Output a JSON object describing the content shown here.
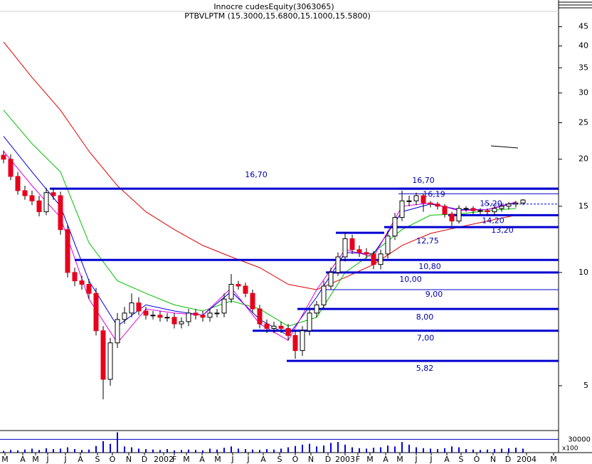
{
  "chart_data": {
    "type": "candlestick",
    "title": "Innocre cudesEquity(3063065)",
    "subtitle": "PTBVLPTM (15.3000,15.6800,15.1000,15.5800)",
    "log_scale": true,
    "up_color": "#ffffff",
    "down_color": "#e8001c",
    "ylim": [
      3.8,
      53
    ],
    "yticks": [
      5,
      10,
      15,
      20,
      25,
      30,
      35,
      40,
      45
    ],
    "xlim": [
      -0.5,
      78
    ],
    "xticks": [
      {
        "value": 0.2,
        "label": "M"
      },
      {
        "value": 2.7,
        "label": "A"
      },
      {
        "value": 4.5,
        "label": "M"
      },
      {
        "value": 6.2,
        "label": "J"
      },
      {
        "value": 8.7,
        "label": "J"
      },
      {
        "value": 10.8,
        "label": "A"
      },
      {
        "value": 13.2,
        "label": "S"
      },
      {
        "value": 15.3,
        "label": "O"
      },
      {
        "value": 17.6,
        "label": "N"
      },
      {
        "value": 19.8,
        "label": "D"
      },
      {
        "value": 22.5,
        "label": "2002"
      },
      {
        "value": 24,
        "label": "F"
      },
      {
        "value": 25.7,
        "label": "M"
      },
      {
        "value": 27.9,
        "label": "A"
      },
      {
        "value": 30.1,
        "label": "M"
      },
      {
        "value": 32.2,
        "label": "J"
      },
      {
        "value": 34.4,
        "label": "J"
      },
      {
        "value": 36.5,
        "label": "A"
      },
      {
        "value": 38.8,
        "label": "S"
      },
      {
        "value": 41,
        "label": "O"
      },
      {
        "value": 43.2,
        "label": "N"
      },
      {
        "value": 45.6,
        "label": "D"
      },
      {
        "value": 48,
        "label": "2003"
      },
      {
        "value": 49.8,
        "label": "F"
      },
      {
        "value": 51.5,
        "label": "M"
      },
      {
        "value": 53.7,
        "label": "A"
      },
      {
        "value": 55.7,
        "label": "M"
      },
      {
        "value": 58,
        "label": "J"
      },
      {
        "value": 60.1,
        "label": "J"
      },
      {
        "value": 62.3,
        "label": "A"
      },
      {
        "value": 64.3,
        "label": "S"
      },
      {
        "value": 66.5,
        "label": "O"
      },
      {
        "value": 68.8,
        "label": "N"
      },
      {
        "value": 70.9,
        "label": "D"
      },
      {
        "value": 73.5,
        "label": "2004"
      },
      {
        "value": 77.3,
        "label": "M"
      }
    ],
    "open": [
      20.5,
      20,
      18,
      16.5,
      16,
      15.5,
      14.5,
      16.3,
      16,
      13,
      10,
      9.5,
      9.3,
      8.8,
      7,
      5.2,
      6.5,
      7.5,
      7.8,
      8.3,
      7.9,
      7.7,
      7.7,
      7.6,
      7.6,
      7.3,
      7.4,
      7.8,
      7.7,
      7.6,
      7.8,
      7.8,
      8.5,
      9.3,
      9.2,
      8.8,
      8.0,
      7.3,
      7.1,
      7.2,
      7.1,
      6.8,
      6.2,
      7.0,
      7.8,
      8.2,
      9.2,
      10.0,
      11.0,
      12.3,
      11.5,
      11.3,
      11.2,
      10.5,
      11.2,
      12.5,
      14.0,
      15.5,
      15.5,
      16.0,
      15.3,
      15.2,
      15.0,
      14.3,
      13.7,
      14.8,
      14.8,
      14.6,
      14.6,
      14.5,
      14.8,
      15.0,
      15.2,
      15.3
    ],
    "high": [
      21.1,
      20.6,
      18.5,
      17,
      16.5,
      16,
      16.8,
      16.8,
      16.4,
      13.4,
      10.3,
      9.8,
      9.6,
      9.1,
      7.2,
      6.7,
      7.8,
      8.1,
      8.8,
      8.6,
      8.1,
      7.9,
      7.9,
      7.8,
      7.8,
      7.6,
      8.0,
      8.0,
      7.9,
      8.0,
      8.0,
      8.8,
      9.9,
      9.5,
      9.4,
      9.0,
      8.2,
      7.5,
      7.4,
      7.4,
      7.3,
      7.0,
      7.2,
      8.0,
      8.4,
      9.5,
      10.3,
      11.3,
      12.8,
      12.6,
      11.8,
      11.6,
      11.4,
      11.5,
      12.9,
      14.4,
      16.5,
      16.0,
      16.3,
      16.2,
      15.5,
      15.4,
      15.2,
      14.5,
      15.1,
      15.0,
      15.0,
      14.8,
      14.8,
      15.0,
      15.2,
      15.4,
      15.5,
      15.68
    ],
    "low": [
      19.5,
      17.6,
      16.1,
      15.6,
      15.1,
      14.1,
      14.2,
      15.6,
      12.6,
      9.7,
      9.2,
      9.0,
      8.5,
      6.8,
      4.6,
      5.0,
      6.3,
      7.3,
      7.6,
      7.7,
      7.5,
      7.5,
      7.4,
      7.4,
      7.1,
      7.1,
      7.2,
      7.5,
      7.4,
      7.4,
      7.6,
      7.6,
      8.3,
      9.0,
      8.6,
      7.8,
      7.1,
      6.9,
      6.9,
      6.9,
      6.6,
      5.9,
      6.0,
      6.8,
      7.6,
      8.0,
      9.0,
      9.8,
      10.7,
      11.2,
      11.0,
      10.9,
      10.2,
      10.2,
      10.9,
      12.2,
      13.7,
      15.0,
      15.1,
      14.5,
      14.9,
      14.7,
      14.0,
      13.3,
      13.5,
      14.5,
      14.3,
      14.3,
      14.2,
      14.2,
      14.5,
      14.7,
      14.9,
      15.1
    ],
    "close": [
      20,
      18,
      16.5,
      16,
      15.5,
      14.5,
      16.3,
      16,
      13,
      10,
      9.5,
      9.3,
      8.8,
      7,
      5.2,
      6.5,
      7.5,
      7.8,
      8.3,
      7.9,
      7.7,
      7.7,
      7.6,
      7.6,
      7.3,
      7.4,
      7.8,
      7.7,
      7.6,
      7.8,
      7.8,
      8.5,
      9.3,
      9.2,
      8.8,
      8.0,
      7.3,
      7.1,
      7.2,
      7.1,
      6.8,
      6.2,
      7.0,
      7.8,
      8.2,
      9.2,
      10.0,
      11.0,
      12.3,
      11.5,
      11.3,
      11.2,
      10.5,
      11.2,
      12.5,
      14.0,
      15.5,
      15.5,
      16.0,
      15.3,
      15.2,
      15.0,
      14.3,
      13.7,
      14.8,
      14.8,
      14.6,
      14.6,
      14.5,
      14.8,
      15.0,
      15.2,
      15.3,
      15.58
    ],
    "averages": [
      {
        "color": "#e00000",
        "x": [
          0,
          4,
          8,
          12,
          16,
          20,
          24,
          28,
          32,
          36,
          40,
          44,
          48,
          52,
          56,
          60,
          64,
          68,
          72
        ],
        "values": [
          41,
          33,
          27,
          21,
          17,
          14.5,
          13,
          11.8,
          11,
          10.3,
          9.3,
          9.0,
          9.7,
          10.5,
          11.8,
          12.7,
          13.2,
          13.7,
          14.2
        ]
      },
      {
        "color": "#00c000",
        "x": [
          0,
          4,
          8,
          12,
          16,
          20,
          24,
          28,
          32,
          36,
          40,
          44,
          48,
          52,
          56,
          60,
          64,
          68,
          72
        ],
        "values": [
          27,
          22,
          18.5,
          12,
          9.5,
          8.8,
          8.2,
          7.9,
          8.4,
          8.0,
          7.2,
          7.6,
          10,
          11.3,
          13,
          14.2,
          14.3,
          14.6,
          14.8
        ]
      },
      {
        "color": "#0000e0",
        "x": [
          0,
          4,
          8,
          12,
          16,
          20,
          24,
          28,
          32,
          36,
          40,
          44,
          48,
          52,
          56,
          60,
          64,
          68,
          72
        ],
        "values": [
          23,
          18.5,
          15,
          9.5,
          7.2,
          8.2,
          7.9,
          7.7,
          8.9,
          7.5,
          6.8,
          8.6,
          11.3,
          11.2,
          14.5,
          15.2,
          14.7,
          14.7,
          15.3
        ]
      },
      {
        "color": "#e000e0",
        "x": [
          0,
          4,
          8,
          12,
          16,
          20,
          24,
          28,
          32,
          36,
          40,
          44,
          48,
          52,
          56,
          60,
          64,
          68,
          72
        ],
        "values": [
          21,
          17,
          14,
          8.5,
          6.5,
          8.0,
          7.8,
          7.7,
          9.1,
          7.3,
          6.6,
          9.0,
          11.5,
          11.0,
          15.0,
          15.3,
          14.6,
          14.7,
          15.4
        ]
      }
    ],
    "levels": [
      {
        "value": 16.7,
        "label": "16,70",
        "start": 6.5,
        "style": "thick"
      },
      {
        "value": 16.7,
        "label": "16,70",
        "start": 55.5,
        "style": "thick"
      },
      {
        "value": 16.19,
        "label": "16,19",
        "start": 55.5,
        "style": "thin"
      },
      {
        "value": 15.2,
        "label": "15,20",
        "start": 67.5,
        "style": "dashed"
      },
      {
        "value": 14.2,
        "label": "14,20",
        "start": 62.5,
        "style": "thick"
      },
      {
        "value": 13.2,
        "label": "13,20",
        "start": 53.5,
        "style": "thick"
      },
      {
        "value": 12.75,
        "label": "12,75",
        "start": 46.7,
        "end": 53.5,
        "style": "thick"
      },
      {
        "value": 10.8,
        "label": "10,80",
        "start": 10,
        "style": "thick"
      },
      {
        "value": 10,
        "label": "10,00",
        "start": 45.3,
        "style": "thick"
      },
      {
        "value": 9,
        "label": "9,00",
        "start": 45,
        "style": "thin"
      },
      {
        "value": 8,
        "label": "8,00",
        "start": 41.3,
        "style": "thick"
      },
      {
        "value": 7,
        "label": "7,00",
        "start": 35,
        "style": "thick"
      },
      {
        "value": 5.82,
        "label": "5,82",
        "start": 39.8,
        "style": "thick"
      }
    ],
    "level_color": "#0000d0",
    "volume": {
      "color": "#0000e0",
      "unit_label": "x100",
      "ylim": [
        0,
        50000
      ],
      "yticks": [
        30000
      ],
      "values": [
        4000,
        6000,
        5000,
        7000,
        9000,
        6000,
        10000,
        8000,
        9000,
        12000,
        8000,
        6000,
        7000,
        15000,
        26000,
        20000,
        46000,
        14000,
        12000,
        9000,
        8000,
        7000,
        6000,
        8000,
        5000,
        6000,
        7000,
        6000,
        5000,
        9000,
        7000,
        11000,
        14000,
        9000,
        8000,
        7000,
        6000,
        8000,
        7000,
        9000,
        12000,
        15000,
        18000,
        20000,
        14000,
        16000,
        22000,
        24000,
        18000,
        12000,
        10000,
        9000,
        11000,
        12000,
        16000,
        14000,
        24000,
        18000,
        12000,
        10000,
        9000,
        8000,
        10000,
        14000,
        12000,
        8000,
        7000,
        6000,
        7000,
        8000,
        9000,
        10000,
        11000,
        9000
      ]
    }
  }
}
